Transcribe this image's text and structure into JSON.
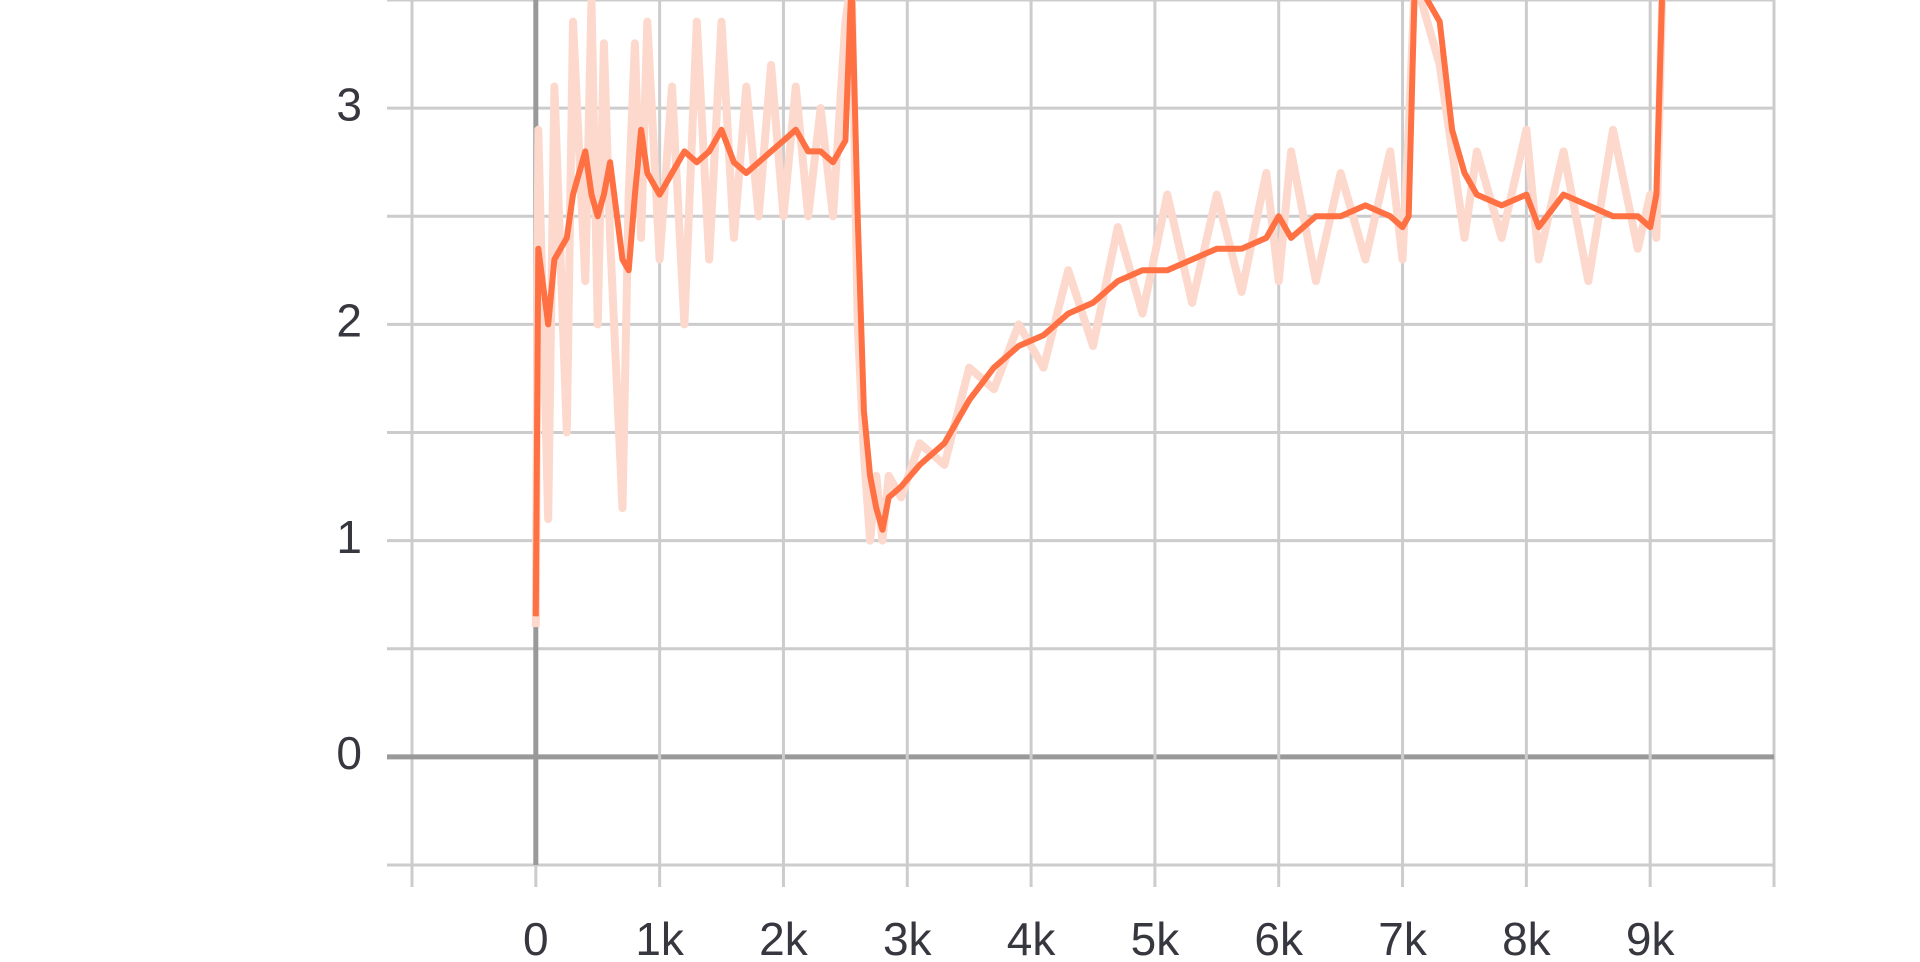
{
  "chart_data": {
    "type": "line",
    "x": [
      0,
      20,
      100,
      150,
      250,
      300,
      400,
      450,
      500,
      550,
      600,
      700,
      750,
      800,
      850,
      900,
      1000,
      1100,
      1200,
      1300,
      1400,
      1500,
      1600,
      1700,
      1800,
      1900,
      2000,
      2100,
      2200,
      2300,
      2400,
      2500,
      2550,
      2600,
      2650,
      2700,
      2750,
      2800,
      2850,
      2950,
      3100,
      3300,
      3500,
      3700,
      3900,
      4100,
      4300,
      4500,
      4700,
      4900,
      5100,
      5300,
      5500,
      5700,
      5900,
      6000,
      6100,
      6300,
      6500,
      6700,
      6900,
      7000,
      7050,
      7100,
      7300,
      7400,
      7500,
      7600,
      7800,
      8000,
      8100,
      8300,
      8500,
      8700,
      8900,
      9000,
      9050,
      9100
    ],
    "series": [
      {
        "color": "#fcd9cc",
        "values": [
          0.6,
          2.9,
          1.1,
          3.1,
          1.5,
          3.4,
          2.2,
          3.5,
          2.0,
          3.3,
          2.4,
          1.15,
          2.6,
          3.3,
          2.4,
          3.4,
          2.3,
          3.1,
          2.0,
          3.4,
          2.3,
          3.4,
          2.4,
          3.1,
          2.5,
          3.2,
          2.5,
          3.1,
          2.5,
          3.0,
          2.5,
          3.4,
          3.6,
          2.0,
          1.4,
          1.0,
          1.3,
          1.0,
          1.3,
          1.2,
          1.45,
          1.35,
          1.8,
          1.7,
          2.0,
          1.8,
          2.25,
          1.9,
          2.45,
          2.05,
          2.6,
          2.1,
          2.6,
          2.15,
          2.7,
          2.2,
          2.8,
          2.2,
          2.7,
          2.3,
          2.8,
          2.3,
          2.9,
          3.6,
          3.2,
          2.8,
          2.4,
          2.8,
          2.4,
          2.9,
          2.3,
          2.8,
          2.2,
          2.9,
          2.35,
          2.6,
          2.4,
          3.6
        ]
      },
      {
        "color": "#ff7043",
        "values": [
          0.65,
          2.35,
          2.0,
          2.3,
          2.4,
          2.6,
          2.8,
          2.6,
          2.5,
          2.6,
          2.75,
          2.3,
          2.25,
          2.6,
          2.9,
          2.7,
          2.6,
          2.7,
          2.8,
          2.75,
          2.8,
          2.9,
          2.75,
          2.7,
          2.75,
          2.8,
          2.85,
          2.9,
          2.8,
          2.8,
          2.75,
          2.85,
          3.6,
          2.5,
          1.6,
          1.3,
          1.15,
          1.05,
          1.2,
          1.25,
          1.35,
          1.45,
          1.65,
          1.8,
          1.9,
          1.95,
          2.05,
          2.1,
          2.2,
          2.25,
          2.25,
          2.3,
          2.35,
          2.35,
          2.4,
          2.5,
          2.4,
          2.5,
          2.5,
          2.55,
          2.5,
          2.45,
          2.5,
          3.6,
          3.4,
          2.9,
          2.7,
          2.6,
          2.55,
          2.6,
          2.45,
          2.6,
          2.55,
          2.5,
          2.5,
          2.45,
          2.6,
          3.6
        ]
      }
    ],
    "xlim": [
      -1000,
      10000
    ],
    "xticks": [
      0,
      {
        "value": 1000,
        "label": "1k"
      },
      {
        "value": 2000,
        "label": "2k"
      },
      {
        "value": 3000,
        "label": "3k"
      },
      {
        "value": 4000,
        "label": "4k"
      },
      {
        "value": 5000,
        "label": "5k"
      },
      {
        "value": 6000,
        "label": "6k"
      },
      {
        "value": 7000,
        "label": "7k"
      },
      {
        "value": 8000,
        "label": "8k"
      },
      {
        "value": 9000,
        "label": "9k"
      }
    ],
    "ylim": [
      -0.5,
      3.5
    ],
    "yticks": [
      0,
      1,
      2,
      3
    ],
    "minor_yticks": [
      -0.5,
      0.5,
      1.5,
      2.5,
      3.5
    ],
    "grid": true
  }
}
